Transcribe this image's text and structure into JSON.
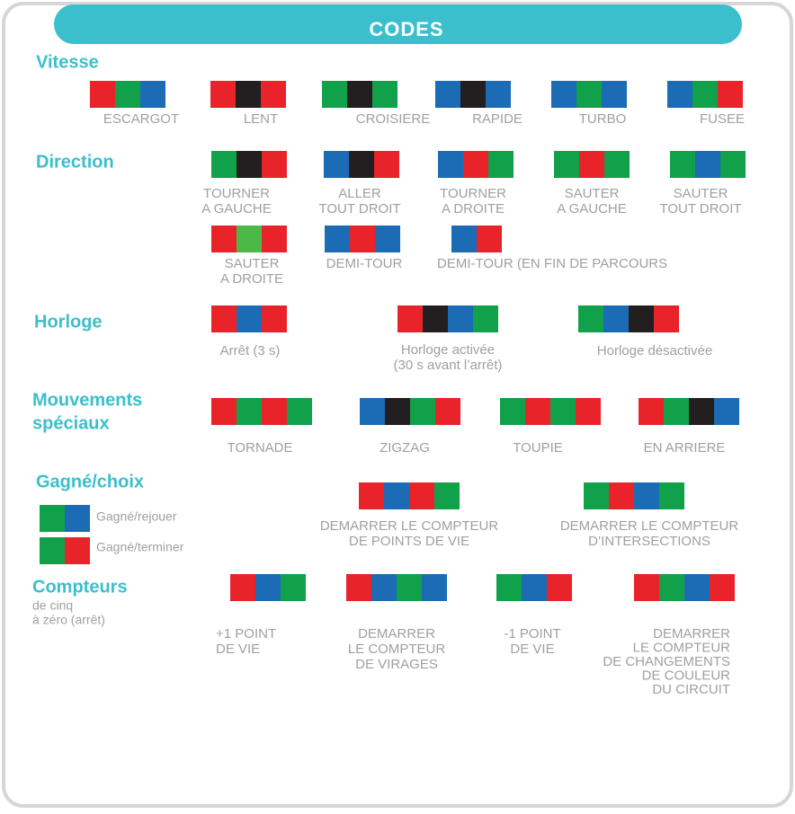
{
  "header": {
    "title": "CODES"
  },
  "palette": {
    "R": "#e8232a",
    "G": "#12a14b",
    "L": "#4db848",
    "B": "#1b6bb5",
    "K": "#231f20"
  },
  "sections": [
    {
      "title": [
        "Vitesse"
      ],
      "codes": [
        {
          "colors": [
            "R",
            "G",
            "B"
          ],
          "label": [
            "ESCARGOT"
          ]
        },
        {
          "colors": [
            "R",
            "K",
            "R"
          ],
          "label": [
            "LENT"
          ]
        },
        {
          "colors": [
            "G",
            "K",
            "G"
          ],
          "label": [
            "CROISIERE"
          ]
        },
        {
          "colors": [
            "B",
            "K",
            "B"
          ],
          "label": [
            "RAPIDE"
          ]
        },
        {
          "colors": [
            "B",
            "G",
            "B"
          ],
          "label": [
            "TURBO"
          ]
        },
        {
          "colors": [
            "B",
            "G",
            "R"
          ],
          "label": [
            "FUSEE"
          ]
        }
      ]
    },
    {
      "title": [
        "Direction"
      ],
      "codes": [
        {
          "colors": [
            "G",
            "K",
            "R"
          ],
          "label": [
            "TOURNER",
            "A GAUCHE"
          ]
        },
        {
          "colors": [
            "B",
            "K",
            "R"
          ],
          "label": [
            "ALLER",
            "TOUT DROIT"
          ]
        },
        {
          "colors": [
            "B",
            "R",
            "G"
          ],
          "label": [
            "TOURNER",
            "A DROITE"
          ]
        },
        {
          "colors": [
            "G",
            "R",
            "G"
          ],
          "label": [
            "SAUTER",
            "A GAUCHE"
          ]
        },
        {
          "colors": [
            "G",
            "B",
            "G"
          ],
          "label": [
            "SAUTER",
            "TOUT DROIT"
          ]
        },
        {
          "colors": [
            "R",
            "L",
            "R"
          ],
          "label": [
            "SAUTER",
            "A DROITE"
          ]
        },
        {
          "colors": [
            "B",
            "R",
            "B"
          ],
          "label": [
            "DEMI-TOUR"
          ]
        },
        {
          "colors": [
            "B",
            "R"
          ],
          "label": [
            "DEMI-TOUR (EN FIN DE PARCOURS"
          ]
        }
      ]
    },
    {
      "title": [
        "Horloge"
      ],
      "codes": [
        {
          "colors": [
            "R",
            "B",
            "R"
          ],
          "label": [
            "Arrêt (3 s)"
          ]
        },
        {
          "colors": [
            "R",
            "K",
            "B",
            "G"
          ],
          "label": [
            "Horloge activée",
            "(30 s avant l’arrêt)"
          ]
        },
        {
          "colors": [
            "G",
            "B",
            "K",
            "R"
          ],
          "label": [
            "Horloge désactivée"
          ]
        }
      ]
    },
    {
      "title": [
        "Mouvements",
        "spéciaux"
      ],
      "codes": [
        {
          "colors": [
            "R",
            "G",
            "R",
            "G"
          ],
          "label": [
            "TORNADE"
          ]
        },
        {
          "colors": [
            "B",
            "K",
            "G",
            "R"
          ],
          "label": [
            "ZIGZAG"
          ]
        },
        {
          "colors": [
            "G",
            "R",
            "G",
            "R"
          ],
          "label": [
            "TOUPIE"
          ]
        },
        {
          "colors": [
            "R",
            "G",
            "K",
            "B"
          ],
          "label": [
            "EN ARRIERE"
          ]
        }
      ]
    },
    {
      "title": [
        "Gagné/choix"
      ],
      "legend": [
        {
          "colors": [
            "G",
            "B"
          ],
          "label": [
            "Gagné/rejouer"
          ]
        },
        {
          "colors": [
            "G",
            "R"
          ],
          "label": [
            "Gagné/terminer"
          ]
        }
      ],
      "codes": [
        {
          "colors": [
            "R",
            "B",
            "R",
            "G"
          ],
          "label": [
            "DEMARRER LE COMPTEUR",
            "DE POINTS DE VIE"
          ]
        },
        {
          "colors": [
            "G",
            "R",
            "B",
            "G"
          ],
          "label": [
            "DEMARRER LE COMPTEUR",
            "D’INTERSECTIONS"
          ]
        }
      ]
    },
    {
      "title": [
        "Compteurs"
      ],
      "subtitle": [
        "de cinq",
        "à zéro (arrêt)"
      ],
      "codes": [
        {
          "colors": [
            "R",
            "B",
            "G"
          ],
          "label": [
            "+1 POINT",
            "DE VIE"
          ]
        },
        {
          "colors": [
            "R",
            "B",
            "G",
            "B"
          ],
          "label": [
            "DEMARRER",
            "LE COMPTEUR",
            "DE VIRAGES"
          ]
        },
        {
          "colors": [
            "G",
            "B",
            "R"
          ],
          "label": [
            "-1 POINT",
            "DE VIE"
          ]
        },
        {
          "colors": [
            "R",
            "G",
            "B",
            "R"
          ],
          "label": [
            "DEMARRER",
            "LE COMPTEUR",
            "DE CHANGEMENTS",
            "DE COULEUR",
            "DU CIRCUIT"
          ]
        }
      ]
    }
  ]
}
